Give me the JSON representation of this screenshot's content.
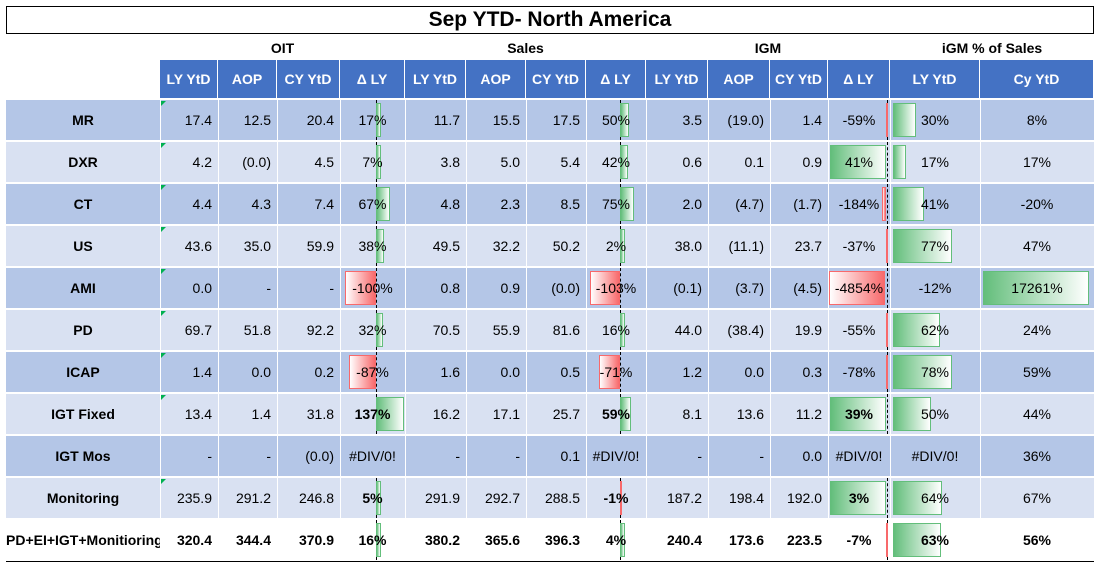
{
  "title": "Sep YTD- North America",
  "groups": [
    "OIT",
    "Sales",
    "IGM",
    "iGM % of Sales"
  ],
  "subheaders": [
    "LY YtD",
    "AOP",
    "CY YtD",
    "Δ LY",
    "LY YtD",
    "AOP",
    "CY YtD",
    "Δ LY",
    "LY YtD",
    "AOP",
    "CY YtD",
    "Δ LY",
    "LY YtD",
    "Cy YtD"
  ],
  "colors": {
    "header_blue": "#4472c4",
    "row_dark": "#b4c6e7",
    "row_light": "#d9e1f2",
    "bar_green": "#63be7b",
    "bar_red": "#f8696b"
  },
  "rows": [
    {
      "label": "MR",
      "cells": [
        "17.4",
        "12.5",
        "20.4",
        "17%",
        "11.7",
        "15.5",
        "17.5",
        "50%",
        "3.5",
        "(19.0)",
        "1.4",
        "-59%",
        "30%",
        "8%"
      ],
      "delta": [
        17,
        50,
        -59
      ],
      "igm": [
        30,
        8
      ]
    },
    {
      "label": "DXR",
      "cells": [
        "4.2",
        "(0.0)",
        "4.5",
        "7%",
        "3.8",
        "5.0",
        "5.4",
        "42%",
        "0.6",
        "0.1",
        "0.9",
        "41%",
        "17%",
        "17%"
      ],
      "delta": [
        7,
        42,
        41
      ],
      "igm": [
        17,
        17
      ]
    },
    {
      "label": "CT",
      "cells": [
        "4.4",
        "4.3",
        "7.4",
        "67%",
        "4.8",
        "2.3",
        "8.5",
        "75%",
        "2.0",
        "(4.7)",
        "(1.7)",
        "-184%",
        "41%",
        "-20%"
      ],
      "delta": [
        67,
        75,
        -184
      ],
      "igm": [
        41,
        -20
      ]
    },
    {
      "label": "US",
      "cells": [
        "43.6",
        "35.0",
        "59.9",
        "38%",
        "49.5",
        "32.2",
        "50.2",
        "2%",
        "38.0",
        "(11.1)",
        "23.7",
        "-37%",
        "77%",
        "47%"
      ],
      "delta": [
        38,
        2,
        -37
      ],
      "igm": [
        77,
        47
      ]
    },
    {
      "label": "AMI",
      "cells": [
        "0.0",
        "-",
        "-",
        "-100%",
        "0.8",
        "0.9",
        "(0.0)",
        "-103%",
        "(0.1)",
        "(3.7)",
        "(4.5)",
        "-4854%",
        "-12%",
        "17261%"
      ],
      "delta": [
        -100,
        -103,
        -4854
      ],
      "igm": [
        -12,
        17261
      ]
    },
    {
      "label": "PD",
      "cells": [
        "69.7",
        "51.8",
        "92.2",
        "32%",
        "70.5",
        "55.9",
        "81.6",
        "16%",
        "44.0",
        "(38.4)",
        "19.9",
        "-55%",
        "62%",
        "24%"
      ],
      "delta": [
        32,
        16,
        -55
      ],
      "igm": [
        62,
        24
      ]
    },
    {
      "label": "ICAP",
      "cells": [
        "1.4",
        "0.0",
        "0.2",
        "-87%",
        "1.6",
        "0.0",
        "0.5",
        "-71%",
        "1.2",
        "0.0",
        "0.3",
        "-78%",
        "78%",
        "59%"
      ],
      "delta": [
        -87,
        -71,
        -78
      ],
      "igm": [
        78,
        59
      ]
    },
    {
      "label": "IGT Fixed",
      "cells": [
        "13.4",
        "1.4",
        "31.8",
        "137%",
        "16.2",
        "17.1",
        "25.7",
        "59%",
        "8.1",
        "13.6",
        "11.2",
        "39%",
        "50%",
        "44%"
      ],
      "delta": [
        137,
        59,
        39
      ],
      "igm": [
        50,
        44
      ]
    },
    {
      "label": "IGT Mos",
      "cells": [
        "-",
        "-",
        "(0.0)",
        "#DIV/0!",
        "-",
        "-",
        "0.1",
        "#DIV/0!",
        "-",
        "-",
        "0.0",
        "#DIV/0!",
        "#DIV/0!",
        "36%"
      ],
      "delta": [
        null,
        null,
        null
      ],
      "igm": [
        null,
        36
      ]
    },
    {
      "label": "Monitoring",
      "cells": [
        "235.9",
        "291.2",
        "246.8",
        "5%",
        "291.9",
        "292.7",
        "288.5",
        "-1%",
        "187.2",
        "198.4",
        "192.0",
        "3%",
        "64%",
        "67%"
      ],
      "delta": [
        5,
        -1,
        3
      ],
      "igm": [
        64,
        67
      ]
    },
    {
      "label": "PD+EI+IGT+Monitioring",
      "cells": [
        "320.4",
        "344.4",
        "370.9",
        "16%",
        "380.2",
        "365.6",
        "396.3",
        "4%",
        "240.4",
        "173.6",
        "223.5",
        "-7%",
        "63%",
        "56%"
      ],
      "delta": [
        16,
        4,
        -7
      ],
      "igm": [
        63,
        56
      ]
    }
  ]
}
